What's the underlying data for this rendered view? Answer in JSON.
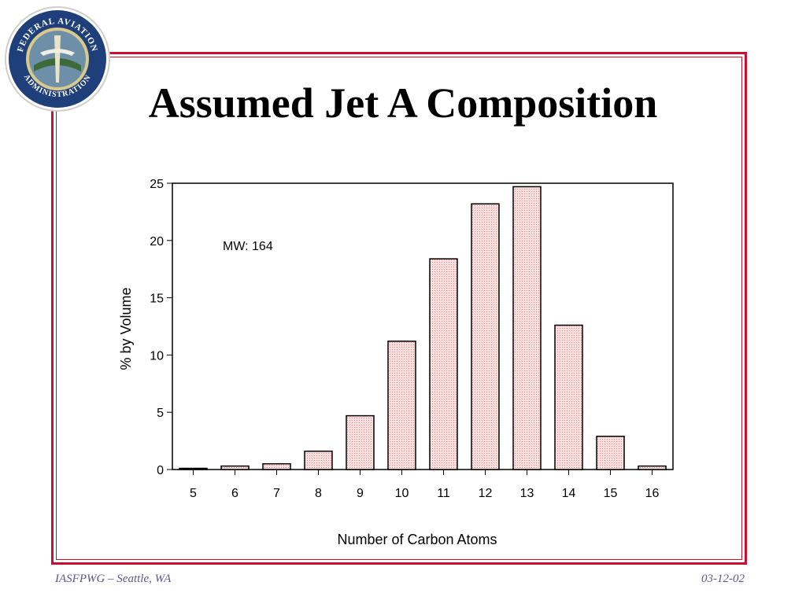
{
  "slide": {
    "title": "Assumed Jet A Composition",
    "footer_left": "IASFPWG – Seattle, WA",
    "footer_right": "03-12-02",
    "accent_color": "#c8102e",
    "seal": {
      "icon": "faa-seal-icon",
      "text": "FEDERAL AVIATION ADMINISTRATION"
    }
  },
  "chart_data": {
    "type": "bar",
    "title": "",
    "xlabel": "Number of Carbon Atoms",
    "ylabel": "% by Volume",
    "categories": [
      "5",
      "6",
      "7",
      "8",
      "9",
      "10",
      "11",
      "12",
      "13",
      "14",
      "15",
      "16"
    ],
    "values": [
      0.1,
      0.3,
      0.5,
      1.6,
      4.7,
      11.2,
      18.4,
      23.2,
      24.7,
      12.6,
      2.9,
      0.3
    ],
    "ylim": [
      0,
      25
    ],
    "yticks": [
      0,
      5,
      10,
      15,
      20,
      25
    ],
    "annotation": "MW: 164",
    "bar_fill": "#f7d4d4",
    "bar_stroke": "#000000"
  }
}
